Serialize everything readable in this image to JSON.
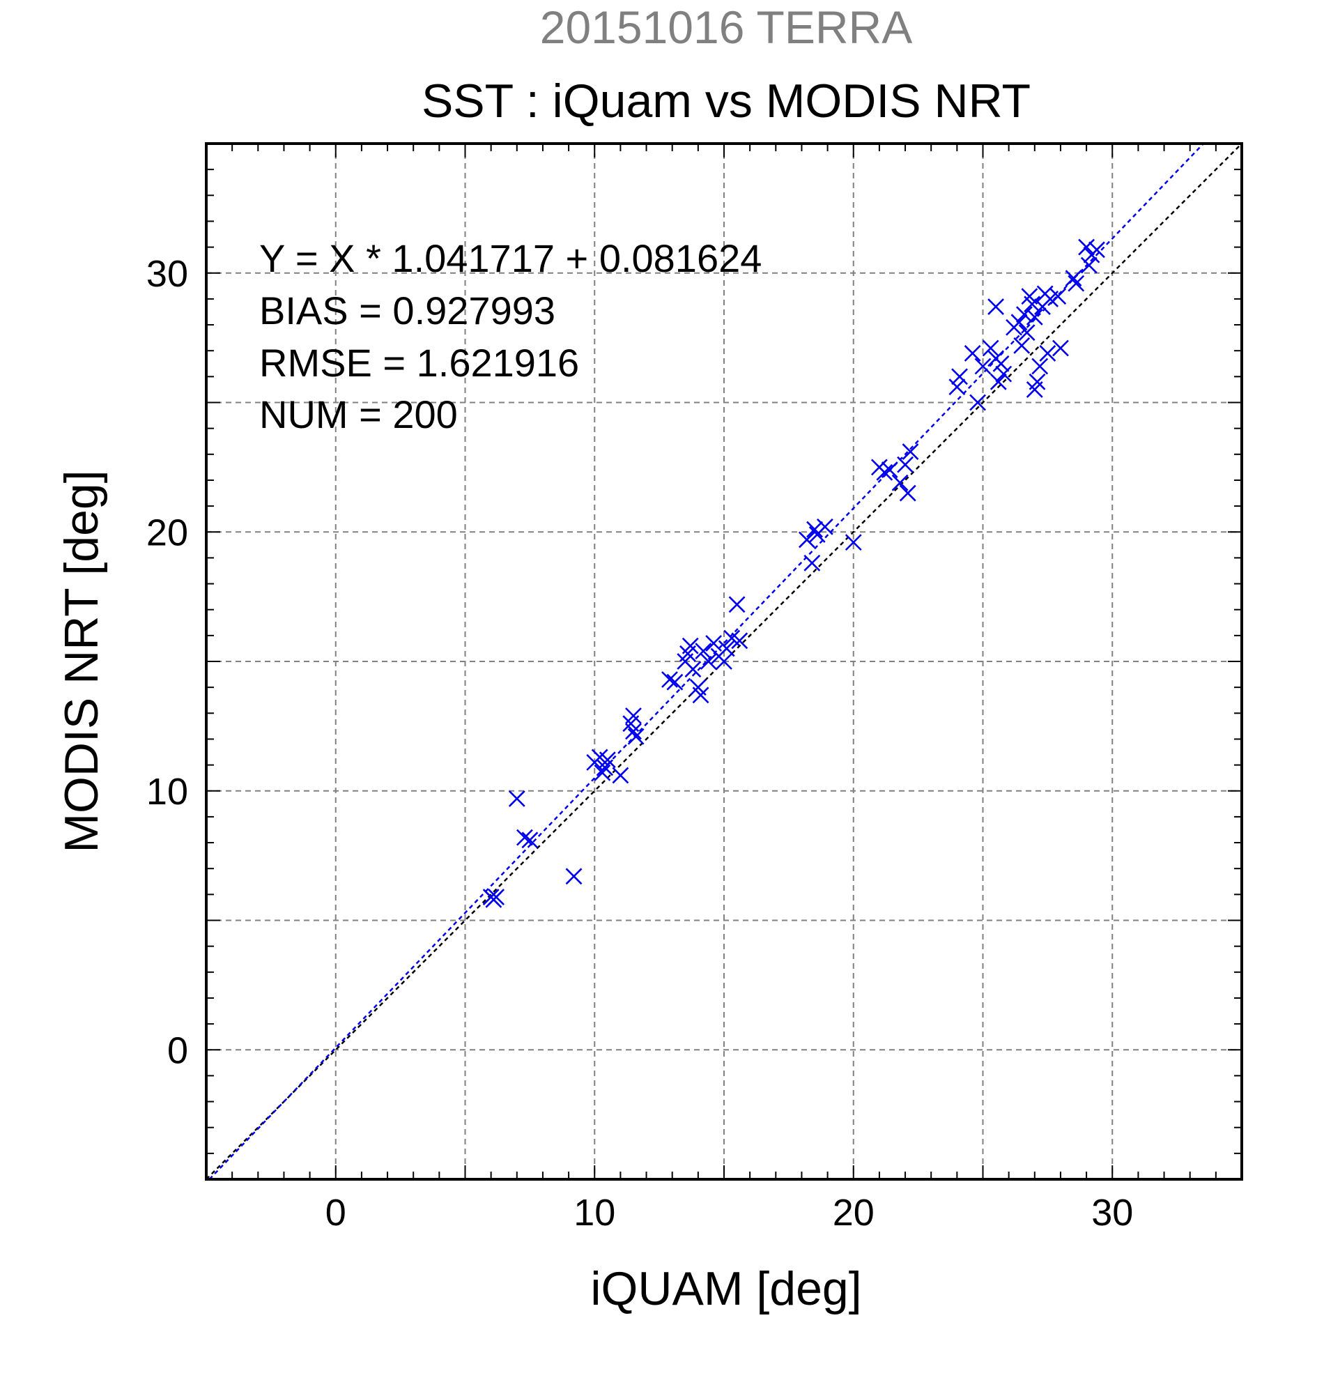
{
  "chart_data": {
    "type": "scatter",
    "date_title": "20151016 TERRA",
    "title": "SST : iQuam vs MODIS NRT",
    "xlabel": "iQUAM [deg]",
    "ylabel": "MODIS NRT [deg]",
    "xlim": [
      -5,
      35
    ],
    "ylim": [
      -5,
      35
    ],
    "xticks": [
      0,
      10,
      20,
      30
    ],
    "yticks": [
      0,
      10,
      20,
      30
    ],
    "xtick_labels": [
      "0",
      "10",
      "20",
      "30"
    ],
    "ytick_labels": [
      "0",
      "10",
      "20",
      "30"
    ],
    "grid_step": 5,
    "minor_tick_step": 1,
    "grid": true,
    "stats": [
      "Y = X * 1.041717 + 0.081624",
      "BIAS = 0.927993",
      "RMSE = 1.621916",
      "NUM = 200"
    ],
    "fit": {
      "slope": 1.041717,
      "intercept": 0.081624
    },
    "colors": {
      "points": "#0000ee",
      "fit_line": "#0000ee",
      "one_to_one": "#000000",
      "date_title": "#808080",
      "grid": "#808080"
    },
    "marker": "x",
    "points": [
      [
        6.0,
        5.9
      ],
      [
        6.1,
        5.8
      ],
      [
        6.2,
        5.9
      ],
      [
        7.0,
        9.7
      ],
      [
        7.3,
        8.2
      ],
      [
        7.5,
        8.1
      ],
      [
        9.2,
        6.7
      ],
      [
        10.0,
        11.1
      ],
      [
        10.2,
        11.3
      ],
      [
        10.4,
        10.9
      ],
      [
        10.5,
        11.2
      ],
      [
        10.3,
        10.7
      ],
      [
        11.0,
        10.6
      ],
      [
        11.5,
        12.3
      ],
      [
        11.6,
        12.1
      ],
      [
        11.5,
        12.9
      ],
      [
        11.4,
        12.6
      ],
      [
        12.9,
        14.3
      ],
      [
        13.1,
        14.2
      ],
      [
        13.5,
        15.0
      ],
      [
        13.6,
        15.3
      ],
      [
        13.7,
        15.6
      ],
      [
        14.0,
        14.0
      ],
      [
        14.1,
        13.7
      ],
      [
        14.2,
        15.4
      ],
      [
        13.8,
        14.7
      ],
      [
        14.4,
        15.0
      ],
      [
        14.8,
        15.2
      ],
      [
        15.0,
        15.0
      ],
      [
        15.1,
        15.5
      ],
      [
        15.3,
        15.9
      ],
      [
        15.6,
        15.8
      ],
      [
        15.5,
        17.2
      ],
      [
        14.6,
        15.7
      ],
      [
        18.2,
        19.7
      ],
      [
        18.4,
        18.8
      ],
      [
        18.5,
        20.1
      ],
      [
        18.6,
        19.9
      ],
      [
        18.9,
        20.2
      ],
      [
        20.0,
        19.6
      ],
      [
        21.0,
        22.5
      ],
      [
        21.2,
        22.3
      ],
      [
        21.4,
        22.4
      ],
      [
        21.8,
        21.9
      ],
      [
        22.0,
        22.6
      ],
      [
        22.1,
        21.5
      ],
      [
        22.2,
        23.1
      ],
      [
        24.0,
        25.6
      ],
      [
        24.1,
        26.0
      ],
      [
        24.6,
        26.9
      ],
      [
        24.8,
        25.0
      ],
      [
        25.0,
        26.4
      ],
      [
        25.3,
        27.1
      ],
      [
        25.5,
        26.7
      ],
      [
        25.6,
        25.8
      ],
      [
        25.7,
        26.5
      ],
      [
        25.8,
        26.1
      ],
      [
        25.5,
        28.7
      ],
      [
        26.2,
        27.9
      ],
      [
        26.4,
        28.1
      ],
      [
        26.5,
        27.2
      ],
      [
        26.6,
        28.4
      ],
      [
        26.7,
        27.7
      ],
      [
        26.8,
        29.1
      ],
      [
        26.9,
        28.8
      ],
      [
        27.0,
        28.3
      ],
      [
        27.0,
        25.5
      ],
      [
        27.1,
        25.8
      ],
      [
        27.2,
        26.4
      ],
      [
        27.3,
        28.7
      ],
      [
        27.4,
        29.2
      ],
      [
        27.5,
        26.9
      ],
      [
        27.6,
        29.0
      ],
      [
        27.9,
        29.1
      ],
      [
        28.0,
        27.1
      ],
      [
        28.5,
        29.8
      ],
      [
        28.6,
        29.6
      ],
      [
        29.0,
        31.0
      ],
      [
        29.2,
        30.7
      ],
      [
        29.4,
        30.9
      ],
      [
        29.1,
        30.3
      ]
    ]
  }
}
